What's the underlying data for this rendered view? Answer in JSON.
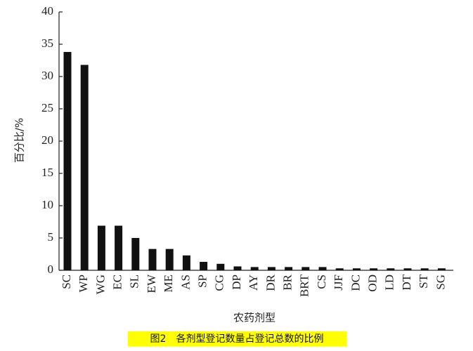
{
  "chart_data": {
    "type": "bar",
    "categories": [
      "SC",
      "WP",
      "WG",
      "EC",
      "SL",
      "EW",
      "ME",
      "AS",
      "SP",
      "CG",
      "DP",
      "AY",
      "DR",
      "BR",
      "BRT",
      "CS",
      "JJF",
      "DC",
      "OD",
      "LD",
      "DT",
      "ST",
      "SG"
    ],
    "values": [
      33.8,
      31.8,
      6.9,
      6.9,
      5.0,
      3.3,
      3.3,
      2.3,
      1.3,
      1.0,
      0.6,
      0.5,
      0.5,
      0.5,
      0.5,
      0.5,
      0.3,
      0.3,
      0.3,
      0.3,
      0.3,
      0.3,
      0.3
    ],
    "color": "#111111",
    "ylim": [
      0,
      40
    ],
    "yticks": [
      0,
      5,
      10,
      15,
      20,
      25,
      30,
      35,
      40
    ],
    "y_label": "百分比/%",
    "x_label": "农药剂型",
    "caption": "图2　各剂型登记数量占登记总数的比例"
  }
}
